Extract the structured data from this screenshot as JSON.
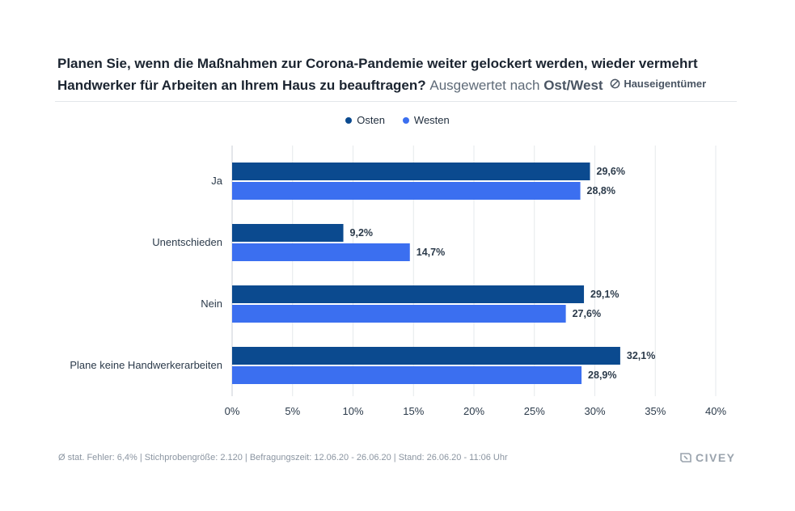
{
  "title": {
    "question": "Planen Sie, wenn die Maßnahmen zur Corona-Pandemie weiter gelockert werden, wieder vermehrt Handwerker für Arbeiten an Ihrem Haus zu beauftragen?",
    "evaluated_by": "Ausgewertet nach",
    "evaluated_by_value": "Ost/West",
    "filter_label": "Hauseigentümer",
    "filter_icon": "filter-circle-slash-icon"
  },
  "legend": [
    {
      "label": "Osten",
      "color": "#0b4a8f"
    },
    {
      "label": "Westen",
      "color": "#3b6ff0"
    }
  ],
  "chart_data": {
    "type": "bar",
    "orientation": "horizontal",
    "categories": [
      "Ja",
      "Unentschieden",
      "Nein",
      "Plane keine Handwerkerarbeiten"
    ],
    "series": [
      {
        "name": "Osten",
        "values": [
          29.6,
          9.2,
          29.1,
          32.1
        ],
        "labels": [
          "29,6%",
          "9,2%",
          "29,1%",
          "32,1%"
        ],
        "color": "#0b4a8f"
      },
      {
        "name": "Westen",
        "values": [
          28.8,
          14.7,
          27.6,
          28.9
        ],
        "labels": [
          "28,8%",
          "14,7%",
          "27,6%",
          "28,9%"
        ],
        "color": "#3b6ff0"
      }
    ],
    "xlim": [
      0,
      40
    ],
    "xticks": [
      0,
      5,
      10,
      15,
      20,
      25,
      30,
      35,
      40
    ],
    "xtick_labels": [
      "0%",
      "5%",
      "10%",
      "15%",
      "20%",
      "25%",
      "30%",
      "35%",
      "40%"
    ],
    "grid": true,
    "legend_position": "top-center"
  },
  "footer": {
    "text": "Ø stat. Fehler: 6,4% | Stichprobengröße: 2.120 | Befragungszeit: 12.06.20 - 26.06.20 | Stand: 26.06.20 - 11:06 Uhr"
  },
  "brand": {
    "name": "CIVEY",
    "icon": "civey-logo-icon"
  }
}
